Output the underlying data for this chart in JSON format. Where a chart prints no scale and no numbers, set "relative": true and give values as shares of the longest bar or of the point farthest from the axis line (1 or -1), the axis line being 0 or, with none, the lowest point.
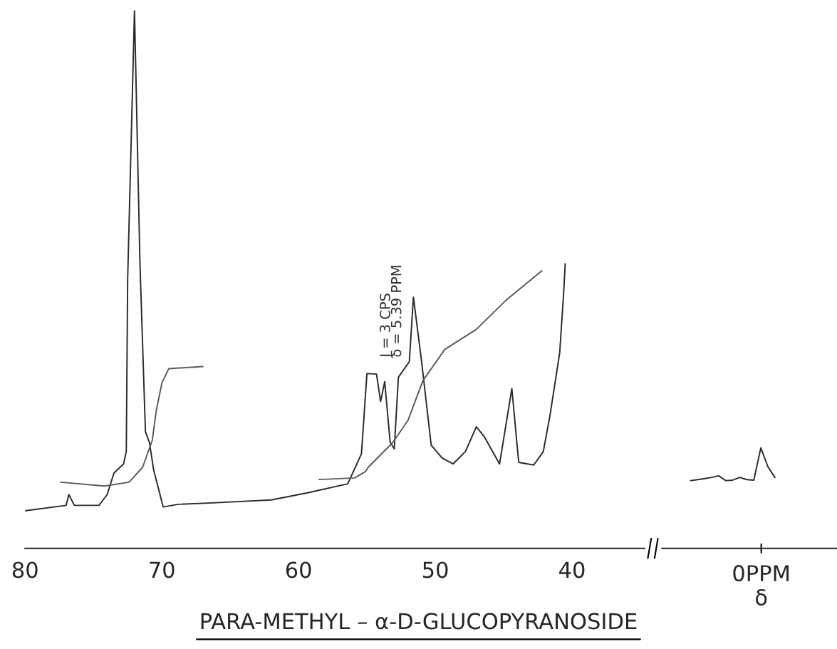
{
  "chart_data": [
    {
      "type": "line",
      "relative": true,
      "title": "PARA-METHYL – α-D-GLUCOPYRANOSIDE",
      "xlim": [
        80,
        34.7
      ],
      "xticks": [
        80,
        70,
        60,
        50,
        40
      ],
      "grid": false,
      "legend": false,
      "marker": "none",
      "line_style": "solid",
      "annotations": [
        "J = 3 CPS",
        "δ = 5.39 PPM"
      ],
      "series": [
        {
          "color": "#2a2a2a",
          "x": [
            80.0,
            77.0,
            76.8,
            76.4,
            74.6,
            74.0,
            73.5,
            72.8,
            72.6,
            72.5,
            72.0,
            71.6,
            71.2,
            70.9,
            70.6,
            69.9,
            68.8,
            66.0,
            62.0,
            59.4,
            56.4,
            55.4,
            55.0,
            54.3,
            54.0,
            53.7,
            53.3,
            53.0,
            52.7,
            51.9,
            51.6,
            51.0,
            50.3,
            49.5,
            48.7,
            47.8,
            47.0,
            46.4,
            45.3,
            44.4,
            43.9,
            42.8,
            42.1,
            41.6,
            40.9,
            40.6,
            40.5
          ],
          "values": [
            0.07,
            0.08,
            0.1,
            0.08,
            0.08,
            0.1,
            0.14,
            0.157,
            0.18,
            0.5,
            1.0,
            0.53,
            0.217,
            0.196,
            0.146,
            0.077,
            0.082,
            0.085,
            0.09,
            0.103,
            0.12,
            0.176,
            0.325,
            0.324,
            0.273,
            0.31,
            0.197,
            0.185,
            0.318,
            0.347,
            0.467,
            0.347,
            0.192,
            0.168,
            0.157,
            0.18,
            0.226,
            0.207,
            0.157,
            0.297,
            0.16,
            0.155,
            0.18,
            0.249,
            0.364,
            0.48,
            0.529
          ]
        },
        {
          "color": "#5a5a5a",
          "x": [
            77.4,
            74.2,
            72.4,
            71.4,
            70.7,
            70.4,
            70.0,
            69.5,
            67.0
          ],
          "values": [
            0.123,
            0.116,
            0.123,
            0.151,
            0.201,
            0.257,
            0.307,
            0.334,
            0.338
          ]
        },
        {
          "color": "#5a5a5a",
          "x": [
            58.5,
            55.9,
            55.1,
            54.9,
            53.1,
            52.0,
            50.9,
            49.3,
            47.0,
            44.8,
            42.2
          ],
          "values": [
            0.128,
            0.131,
            0.143,
            0.151,
            0.197,
            0.238,
            0.312,
            0.37,
            0.407,
            0.462,
            0.516
          ]
        }
      ]
    },
    {
      "type": "line",
      "relative": true,
      "categories": [
        null,
        null,
        null,
        null,
        null,
        null,
        null,
        null,
        null,
        null,
        null,
        null,
        null
      ],
      "annotations": [
        "0PPM",
        "δ"
      ],
      "grid": false,
      "legend": false,
      "marker": "none",
      "line_style": "solid",
      "series": [
        {
          "color": "#2a2a2a",
          "values": [
            0.674,
            0.684,
            0.695,
            0.706,
            0.722,
            0.674,
            0.679,
            0.706,
            0.684,
            0.679,
            1,
            0.813,
            0.706
          ]
        }
      ]
    }
  ]
}
